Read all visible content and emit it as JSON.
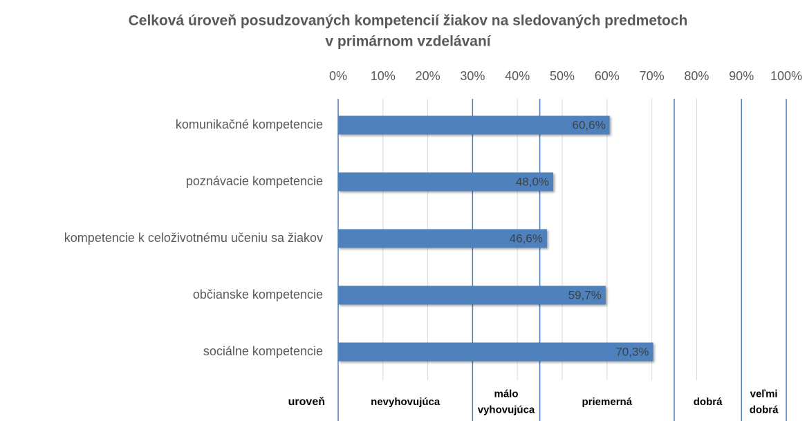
{
  "chart_data": {
    "type": "barh",
    "title": [
      "Celková úroveň posudzovaných kompetencií žiakov na sledovaných predmetoch",
      "v primárnom vzdelávaní"
    ],
    "categories": [
      "komunikačné kompetencie",
      "poznávacie kompetencie",
      "kompetencie k celoživotnému učeniu sa žiakov",
      "občianske kompetencie",
      "sociálne kompetencie"
    ],
    "values": [
      60.6,
      48.0,
      46.6,
      59.7,
      70.3
    ],
    "value_labels": [
      "60,6%",
      "48,0%",
      "46,6%",
      "59,7%",
      "70,3%"
    ],
    "color": "#4f81bd",
    "xlim": [
      0,
      100
    ],
    "xticks": [
      {
        "value": 0,
        "label": "0%"
      },
      {
        "value": 10,
        "label": "10%"
      },
      {
        "value": 20,
        "label": "20%"
      },
      {
        "value": 30,
        "label": "30%"
      },
      {
        "value": 40,
        "label": "40%"
      },
      {
        "value": 50,
        "label": "50%"
      },
      {
        "value": 60,
        "label": "60%"
      },
      {
        "value": 70,
        "label": "70%"
      },
      {
        "value": 80,
        "label": "80%"
      },
      {
        "value": 90,
        "label": "90%"
      },
      {
        "value": 100,
        "label": "100%"
      }
    ],
    "grid": true,
    "levels": {
      "label": "uroveň",
      "bounds": [
        0,
        30,
        45,
        75,
        90,
        100
      ],
      "names": [
        [
          "nevyhovujúca"
        ],
        [
          "málo",
          "vyhovujúca"
        ],
        [
          "priemerná"
        ],
        [
          "dobrá"
        ],
        [
          "veľmi",
          "dobrá"
        ]
      ]
    }
  }
}
